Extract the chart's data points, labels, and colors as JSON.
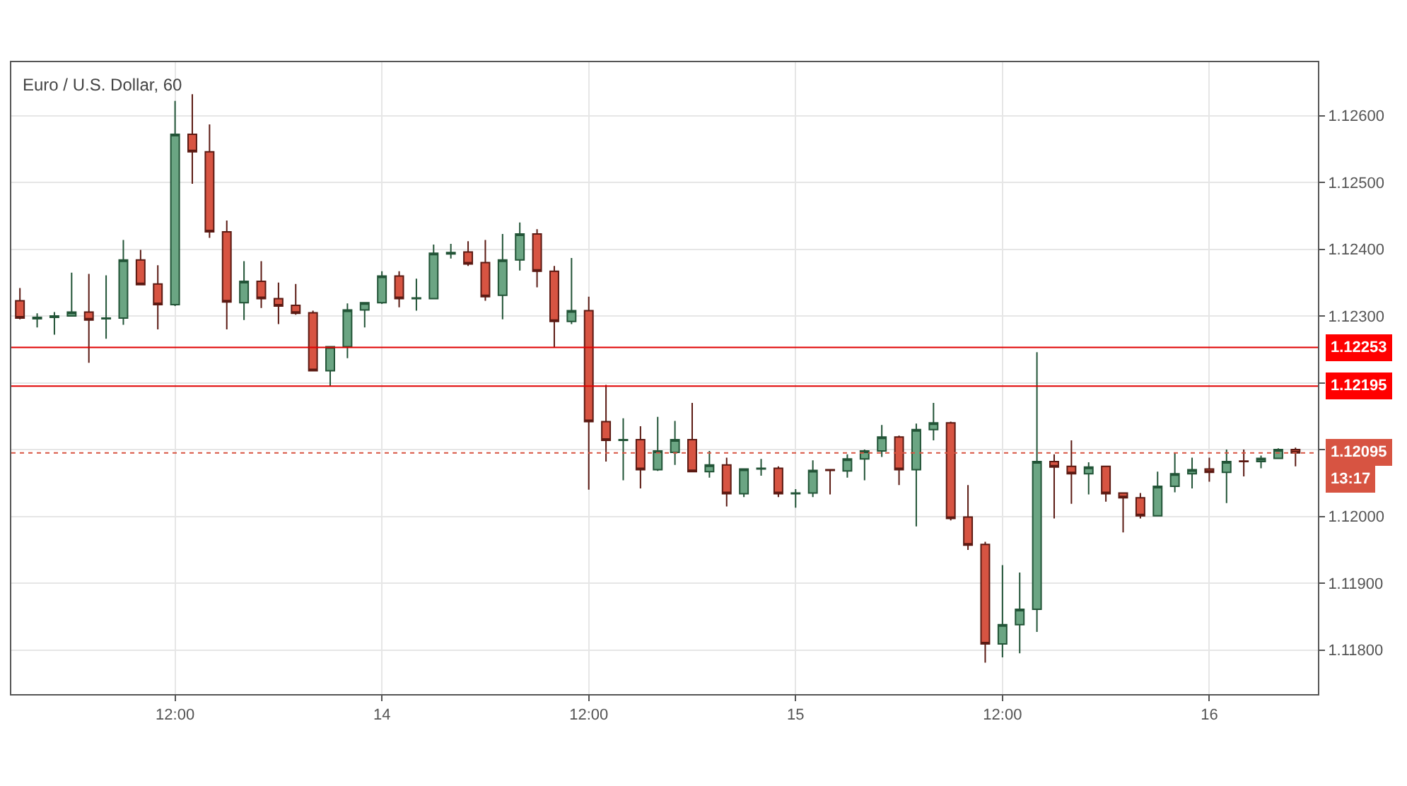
{
  "chart_data": {
    "type": "candlestick",
    "title": "Euro / U.S. Dollar, 60",
    "categories": [
      null,
      null,
      null,
      null,
      null,
      null,
      null,
      null,
      null,
      "12:00",
      null,
      null,
      null,
      null,
      null,
      null,
      null,
      null,
      null,
      null,
      null,
      "14",
      null,
      null,
      null,
      null,
      null,
      null,
      null,
      null,
      null,
      null,
      null,
      "12:00",
      null,
      null,
      null,
      null,
      null,
      null,
      null,
      null,
      null,
      null,
      null,
      "15",
      null,
      null,
      null,
      null,
      null,
      null,
      null,
      null,
      null,
      null,
      null,
      "12:00",
      null,
      null,
      null,
      null,
      null,
      null,
      null,
      null,
      null,
      null,
      null,
      "16",
      null,
      null,
      null,
      null,
      null
    ],
    "ohlc": [
      [
        1.12323,
        1.12342,
        1.12295,
        1.12297
      ],
      [
        1.12296,
        1.12304,
        1.12283,
        1.12298
      ],
      [
        1.12298,
        1.12306,
        1.12272,
        1.123
      ],
      [
        1.123,
        1.12365,
        1.123,
        1.12306
      ],
      [
        1.12306,
        1.12363,
        1.1223,
        1.12294
      ],
      [
        1.12296,
        1.12361,
        1.12266,
        1.12297
      ],
      [
        1.12297,
        1.12414,
        1.12287,
        1.12384
      ],
      [
        1.12384,
        1.12399,
        1.12347,
        1.12347
      ],
      [
        1.12348,
        1.12376,
        1.1228,
        1.12317
      ],
      [
        1.12317,
        1.12622,
        1.12315,
        1.12572
      ],
      [
        1.12572,
        1.12632,
        1.12498,
        1.12546
      ],
      [
        1.12546,
        1.12587,
        1.12417,
        1.12426
      ],
      [
        1.12426,
        1.12443,
        1.1228,
        1.12321
      ],
      [
        1.1232,
        1.12382,
        1.12294,
        1.12352
      ],
      [
        1.12352,
        1.12382,
        1.12312,
        1.12326
      ],
      [
        1.12326,
        1.1235,
        1.12288,
        1.12315
      ],
      [
        1.12316,
        1.12348,
        1.12302,
        1.12304
      ],
      [
        1.12305,
        1.12308,
        1.12218,
        1.12218
      ],
      [
        1.12218,
        1.12254,
        1.12195,
        1.12254
      ],
      [
        1.12254,
        1.12319,
        1.12237,
        1.12309
      ],
      [
        1.12309,
        1.1232,
        1.12283,
        1.1232
      ],
      [
        1.1232,
        1.12367,
        1.12318,
        1.1236
      ],
      [
        1.1236,
        1.12367,
        1.12313,
        1.12326
      ],
      [
        1.12326,
        1.12356,
        1.12308,
        1.12327
      ],
      [
        1.12326,
        1.12407,
        1.12326,
        1.12394
      ],
      [
        1.12393,
        1.12408,
        1.12386,
        1.12395
      ],
      [
        1.12396,
        1.12412,
        1.12375,
        1.12378
      ],
      [
        1.1238,
        1.12414,
        1.12323,
        1.12329
      ],
      [
        1.12331,
        1.12423,
        1.12295,
        1.12384
      ],
      [
        1.12384,
        1.1244,
        1.12368,
        1.12423
      ],
      [
        1.12423,
        1.1243,
        1.12343,
        1.12367
      ],
      [
        1.12367,
        1.12375,
        1.12253,
        1.12292
      ],
      [
        1.12292,
        1.12387,
        1.12288,
        1.12308
      ],
      [
        1.12308,
        1.12329,
        1.1204,
        1.12142
      ],
      [
        1.12142,
        1.12197,
        1.12082,
        1.12114
      ],
      [
        1.12114,
        1.12147,
        1.12054,
        1.12115
      ],
      [
        1.12115,
        1.12135,
        1.12042,
        1.1207
      ],
      [
        1.1207,
        1.12149,
        1.12068,
        1.12098
      ],
      [
        1.12096,
        1.12143,
        1.12077,
        1.12115
      ],
      [
        1.12115,
        1.1217,
        1.12067,
        1.12067
      ],
      [
        1.12067,
        1.12098,
        1.12058,
        1.12077
      ],
      [
        1.12077,
        1.12088,
        1.12015,
        1.12034
      ],
      [
        1.12034,
        1.12071,
        1.12029,
        1.12071
      ],
      [
        1.12071,
        1.12086,
        1.12061,
        1.12072
      ],
      [
        1.12072,
        1.12075,
        1.12029,
        1.12034
      ],
      [
        1.12034,
        1.12041,
        1.12013,
        1.12035
      ],
      [
        1.12035,
        1.12084,
        1.12029,
        1.12069
      ],
      [
        1.1207,
        1.1207,
        1.12033,
        1.12069
      ],
      [
        1.12068,
        1.12093,
        1.12058,
        1.12086
      ],
      [
        1.12086,
        1.121,
        1.12054,
        1.12098
      ],
      [
        1.12098,
        1.12137,
        1.12089,
        1.12119
      ],
      [
        1.12119,
        1.12121,
        1.12047,
        1.1207
      ],
      [
        1.1207,
        1.12139,
        1.11985,
        1.1213
      ],
      [
        1.1213,
        1.1217,
        1.12114,
        1.1214
      ],
      [
        1.1214,
        1.12142,
        1.11994,
        1.11997
      ],
      [
        1.11999,
        1.12047,
        1.1195,
        1.11957
      ],
      [
        1.11958,
        1.11962,
        1.11781,
        1.11809
      ],
      [
        1.11809,
        1.11927,
        1.11789,
        1.11838
      ],
      [
        1.11838,
        1.11916,
        1.11795,
        1.11861
      ],
      [
        1.11861,
        1.12246,
        1.11827,
        1.12082
      ],
      [
        1.12082,
        1.12093,
        1.11997,
        1.12074
      ],
      [
        1.12075,
        1.12114,
        1.12019,
        1.12064
      ],
      [
        1.12064,
        1.12081,
        1.12033,
        1.12074
      ],
      [
        1.12075,
        1.12075,
        1.12022,
        1.12034
      ],
      [
        1.12035,
        1.12035,
        1.11976,
        1.12028
      ],
      [
        1.12028,
        1.12035,
        1.11997,
        1.12001
      ],
      [
        1.12001,
        1.12067,
        1.12001,
        1.12045
      ],
      [
        1.12045,
        1.12095,
        1.12036,
        1.12064
      ],
      [
        1.12064,
        1.12088,
        1.12042,
        1.1207
      ],
      [
        1.12071,
        1.12088,
        1.12052,
        1.12066
      ],
      [
        1.12066,
        1.121,
        1.1202,
        1.12082
      ],
      [
        1.12083,
        1.121,
        1.1206,
        1.12082
      ],
      [
        1.12082,
        1.12091,
        1.12072,
        1.12087
      ],
      [
        1.12087,
        1.12102,
        1.12087,
        1.121
      ],
      [
        1.121,
        1.12103,
        1.12075,
        1.12095
      ]
    ],
    "ylim": [
      1.11734,
      1.1268
    ],
    "yticks": [
      {
        "value": 1.118,
        "label": "1.11800"
      },
      {
        "value": 1.119,
        "label": "1.11900"
      },
      {
        "value": 1.12,
        "label": "1.12000"
      },
      {
        "value": 1.121,
        "label": null
      },
      {
        "value": 1.122,
        "label": null
      },
      {
        "value": 1.123,
        "label": "1.12300"
      },
      {
        "value": 1.124,
        "label": "1.12400"
      },
      {
        "value": 1.125,
        "label": "1.12500"
      },
      {
        "value": 1.126,
        "label": "1.12600"
      }
    ],
    "ref_lines": [
      {
        "axis": "y",
        "value": 1.12253,
        "label": "1.12253",
        "color": "#e00000",
        "line_style": "solid"
      },
      {
        "axis": "y",
        "value": 1.12195,
        "label": "1.12195",
        "color": "#e00000",
        "line_style": "solid"
      },
      {
        "axis": "y",
        "value": 1.12095,
        "label": "1.12095",
        "color": "#d75442",
        "line_style": "dotted"
      }
    ],
    "annotations": [
      "13:17"
    ],
    "grid": true,
    "legend": false
  }
}
